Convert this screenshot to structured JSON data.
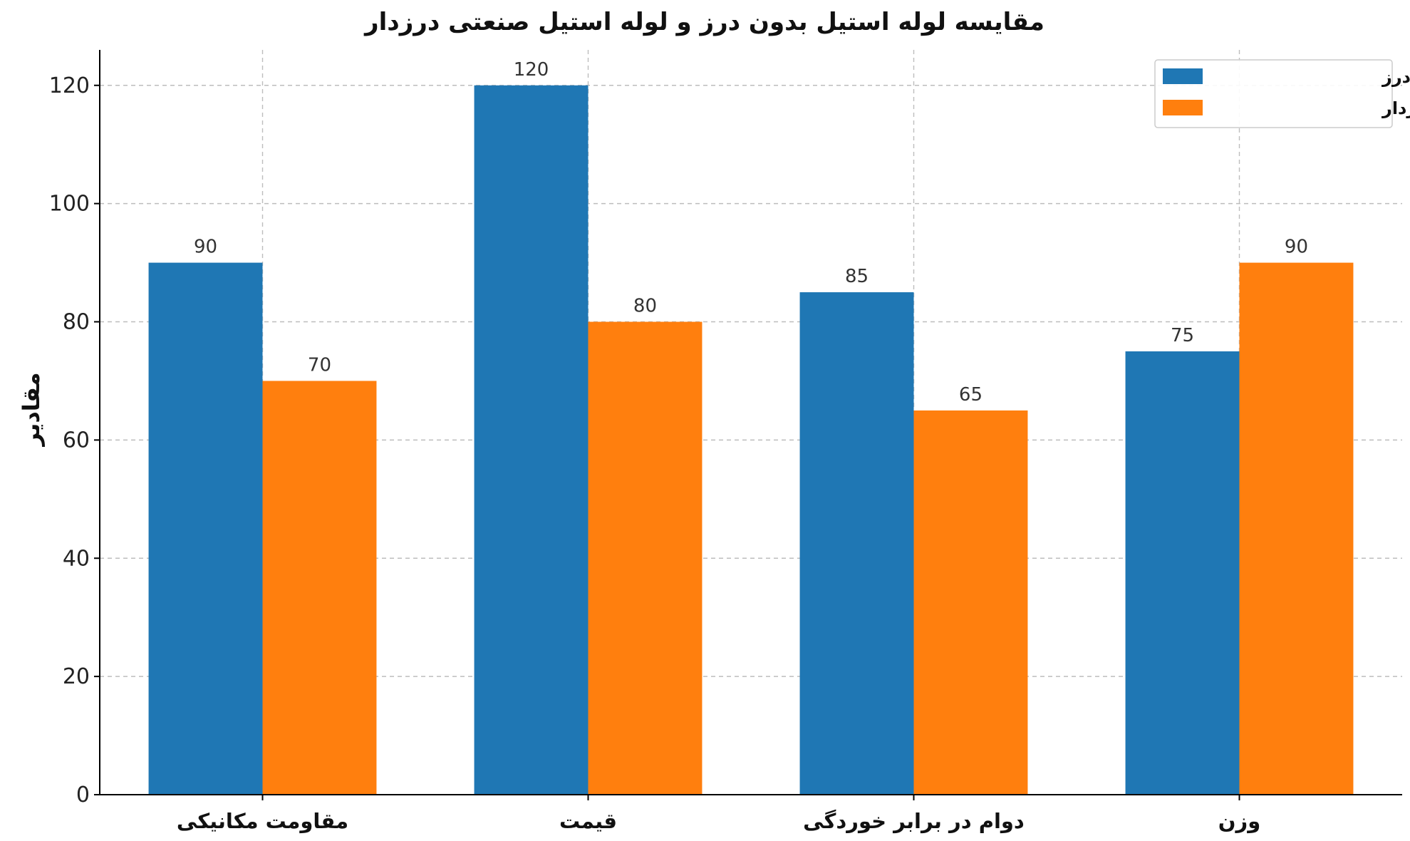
{
  "chart_data": {
    "type": "bar",
    "title": "مقایسه لوله استیل بدون درز و لوله استیل صنعتی درزدار",
    "xlabel": "",
    "ylabel": "مقادیر",
    "ylim": [
      0,
      126
    ],
    "yticks": [
      0,
      20,
      40,
      60,
      80,
      100,
      120
    ],
    "grid": true,
    "legend_position": "top-right",
    "categories": [
      "مقاومت مکانیکی",
      "قیمت",
      "دوام در برابر خوردگی",
      "وزن"
    ],
    "series": [
      {
        "name": "لوله استیل بدون درز",
        "color": "#1f77b4",
        "values": [
          90,
          120,
          85,
          75
        ]
      },
      {
        "name": "لوله استیل درزدار",
        "color": "#ff7f0e",
        "values": [
          70,
          80,
          65,
          90
        ]
      }
    ]
  }
}
